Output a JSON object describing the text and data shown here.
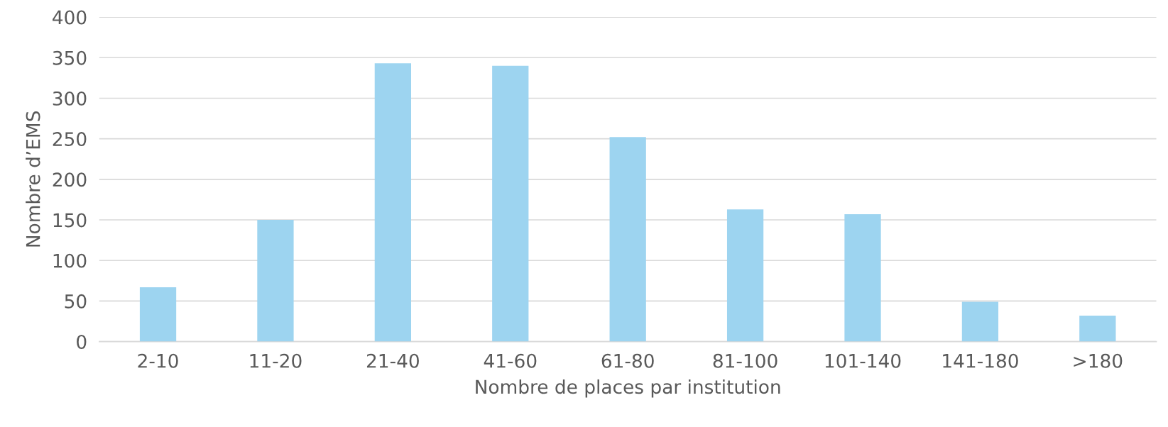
{
  "chart_data": {
    "type": "bar",
    "categories": [
      "2-10",
      "11-20",
      "21-40",
      "41-60",
      "61-80",
      "81-100",
      "101-140",
      "141-180",
      ">180"
    ],
    "values": [
      67,
      150,
      343,
      340,
      252,
      163,
      157,
      49,
      32
    ],
    "color": "#9dd4f0",
    "xlabel": "Nombre de places par institution",
    "ylabel": "Nombre d’EMS",
    "ylim": [
      0,
      400
    ],
    "yticks": [
      0,
      50,
      100,
      150,
      200,
      250,
      300,
      350,
      400
    ],
    "grid": "y",
    "legend": false
  }
}
